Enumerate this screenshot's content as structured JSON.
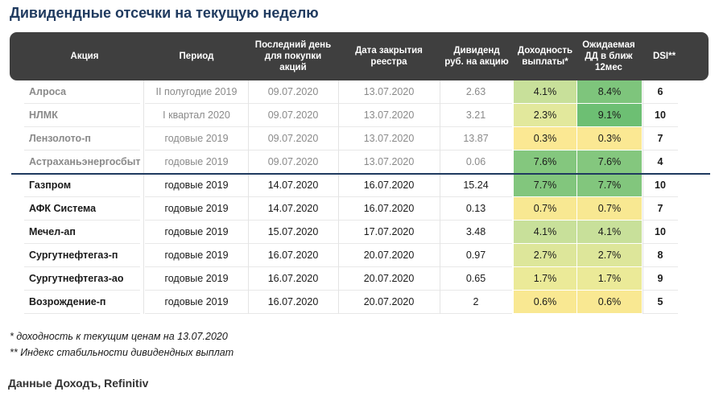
{
  "title": "Дивидендные отсечки на текущую неделю",
  "headers": [
    "Акция",
    "Период",
    "Последний день\nдля покупки\nакций",
    "Дата закрытия\nреестра",
    "Дивиденд\nруб. на акцию",
    "Доходность\nвыплаты*",
    "Ожидаемая\nДД в ближ\n12мес",
    "DSI**"
  ],
  "rows": [
    {
      "name": "Алроса",
      "period": "II полугодие 2019",
      "last_day": "09.07.2020",
      "record": "13.07.2020",
      "dividend": "2.63",
      "yield": "4.1%",
      "yield_color": "#c8e09a",
      "exp": "8.4%",
      "exp_color": "#7ec57c",
      "dsi": "6",
      "past": true
    },
    {
      "name": "НЛМК",
      "period": "I квартал 2020",
      "last_day": "09.07.2020",
      "record": "13.07.2020",
      "dividend": "3.21",
      "yield": "2.3%",
      "yield_color": "#e2e89c",
      "exp": "9.1%",
      "exp_color": "#6dbf73",
      "dsi": "10",
      "past": true
    },
    {
      "name": "Лензолото-п",
      "period": "годовые 2019",
      "last_day": "09.07.2020",
      "record": "13.07.2020",
      "dividend": "13.87",
      "yield": "0.3%",
      "yield_color": "#fbe893",
      "exp": "0.3%",
      "exp_color": "#fbe893",
      "dsi": "7",
      "past": true
    },
    {
      "name": "Астраханьэнергосбыт",
      "period": "годовые 2019",
      "last_day": "09.07.2020",
      "record": "13.07.2020",
      "dividend": "0.06",
      "yield": "7.6%",
      "yield_color": "#84c77e",
      "exp": "7.6%",
      "exp_color": "#84c77e",
      "dsi": "4",
      "past": true
    },
    {
      "name": "Газпром",
      "period": "годовые 2019",
      "last_day": "14.07.2020",
      "record": "16.07.2020",
      "dividend": "15.24",
      "yield": "7.7%",
      "yield_color": "#82c67d",
      "exp": "7.7%",
      "exp_color": "#82c67d",
      "dsi": "10",
      "past": false
    },
    {
      "name": "АФК Система",
      "period": "годовые 2019",
      "last_day": "14.07.2020",
      "record": "16.07.2020",
      "dividend": "0.13",
      "yield": "0.7%",
      "yield_color": "#f8e892",
      "exp": "0.7%",
      "exp_color": "#f8e892",
      "dsi": "7",
      "past": false
    },
    {
      "name": "Мечел-ап",
      "period": "годовые 2019",
      "last_day": "15.07.2020",
      "record": "17.07.2020",
      "dividend": "3.48",
      "yield": "4.1%",
      "yield_color": "#c8e09a",
      "exp": "4.1%",
      "exp_color": "#c8e09a",
      "dsi": "10",
      "past": false
    },
    {
      "name": "Сургутнефтегаз-п",
      "period": "годовые 2019",
      "last_day": "16.07.2020",
      "record": "20.07.2020",
      "dividend": "0.97",
      "yield": "2.7%",
      "yield_color": "#dde69a",
      "exp": "2.7%",
      "exp_color": "#dde69a",
      "dsi": "8",
      "past": false
    },
    {
      "name": "Сургутнефтегаз-ао",
      "period": "годовые 2019",
      "last_day": "16.07.2020",
      "record": "20.07.2020",
      "dividend": "0.65",
      "yield": "1.7%",
      "yield_color": "#ebea98",
      "exp": "1.7%",
      "exp_color": "#ebea98",
      "dsi": "9",
      "past": false
    },
    {
      "name": "Возрождение-п",
      "period": "годовые 2019",
      "last_day": "16.07.2020",
      "record": "20.07.2020",
      "dividend": "2",
      "yield": "0.6%",
      "yield_color": "#f9e892",
      "exp": "0.6%",
      "exp_color": "#f9e892",
      "dsi": "5",
      "past": false
    }
  ],
  "notes": [
    "* доходность к текущим ценам на 13.07.2020",
    "** Индекс стабильности дивидендных выплат"
  ],
  "source": "Данные Доходъ, Refinitiv",
  "colors": {
    "header_bg": "#3f3f3f",
    "title": "#1f3a5f",
    "divider": "#1f3a5f"
  }
}
